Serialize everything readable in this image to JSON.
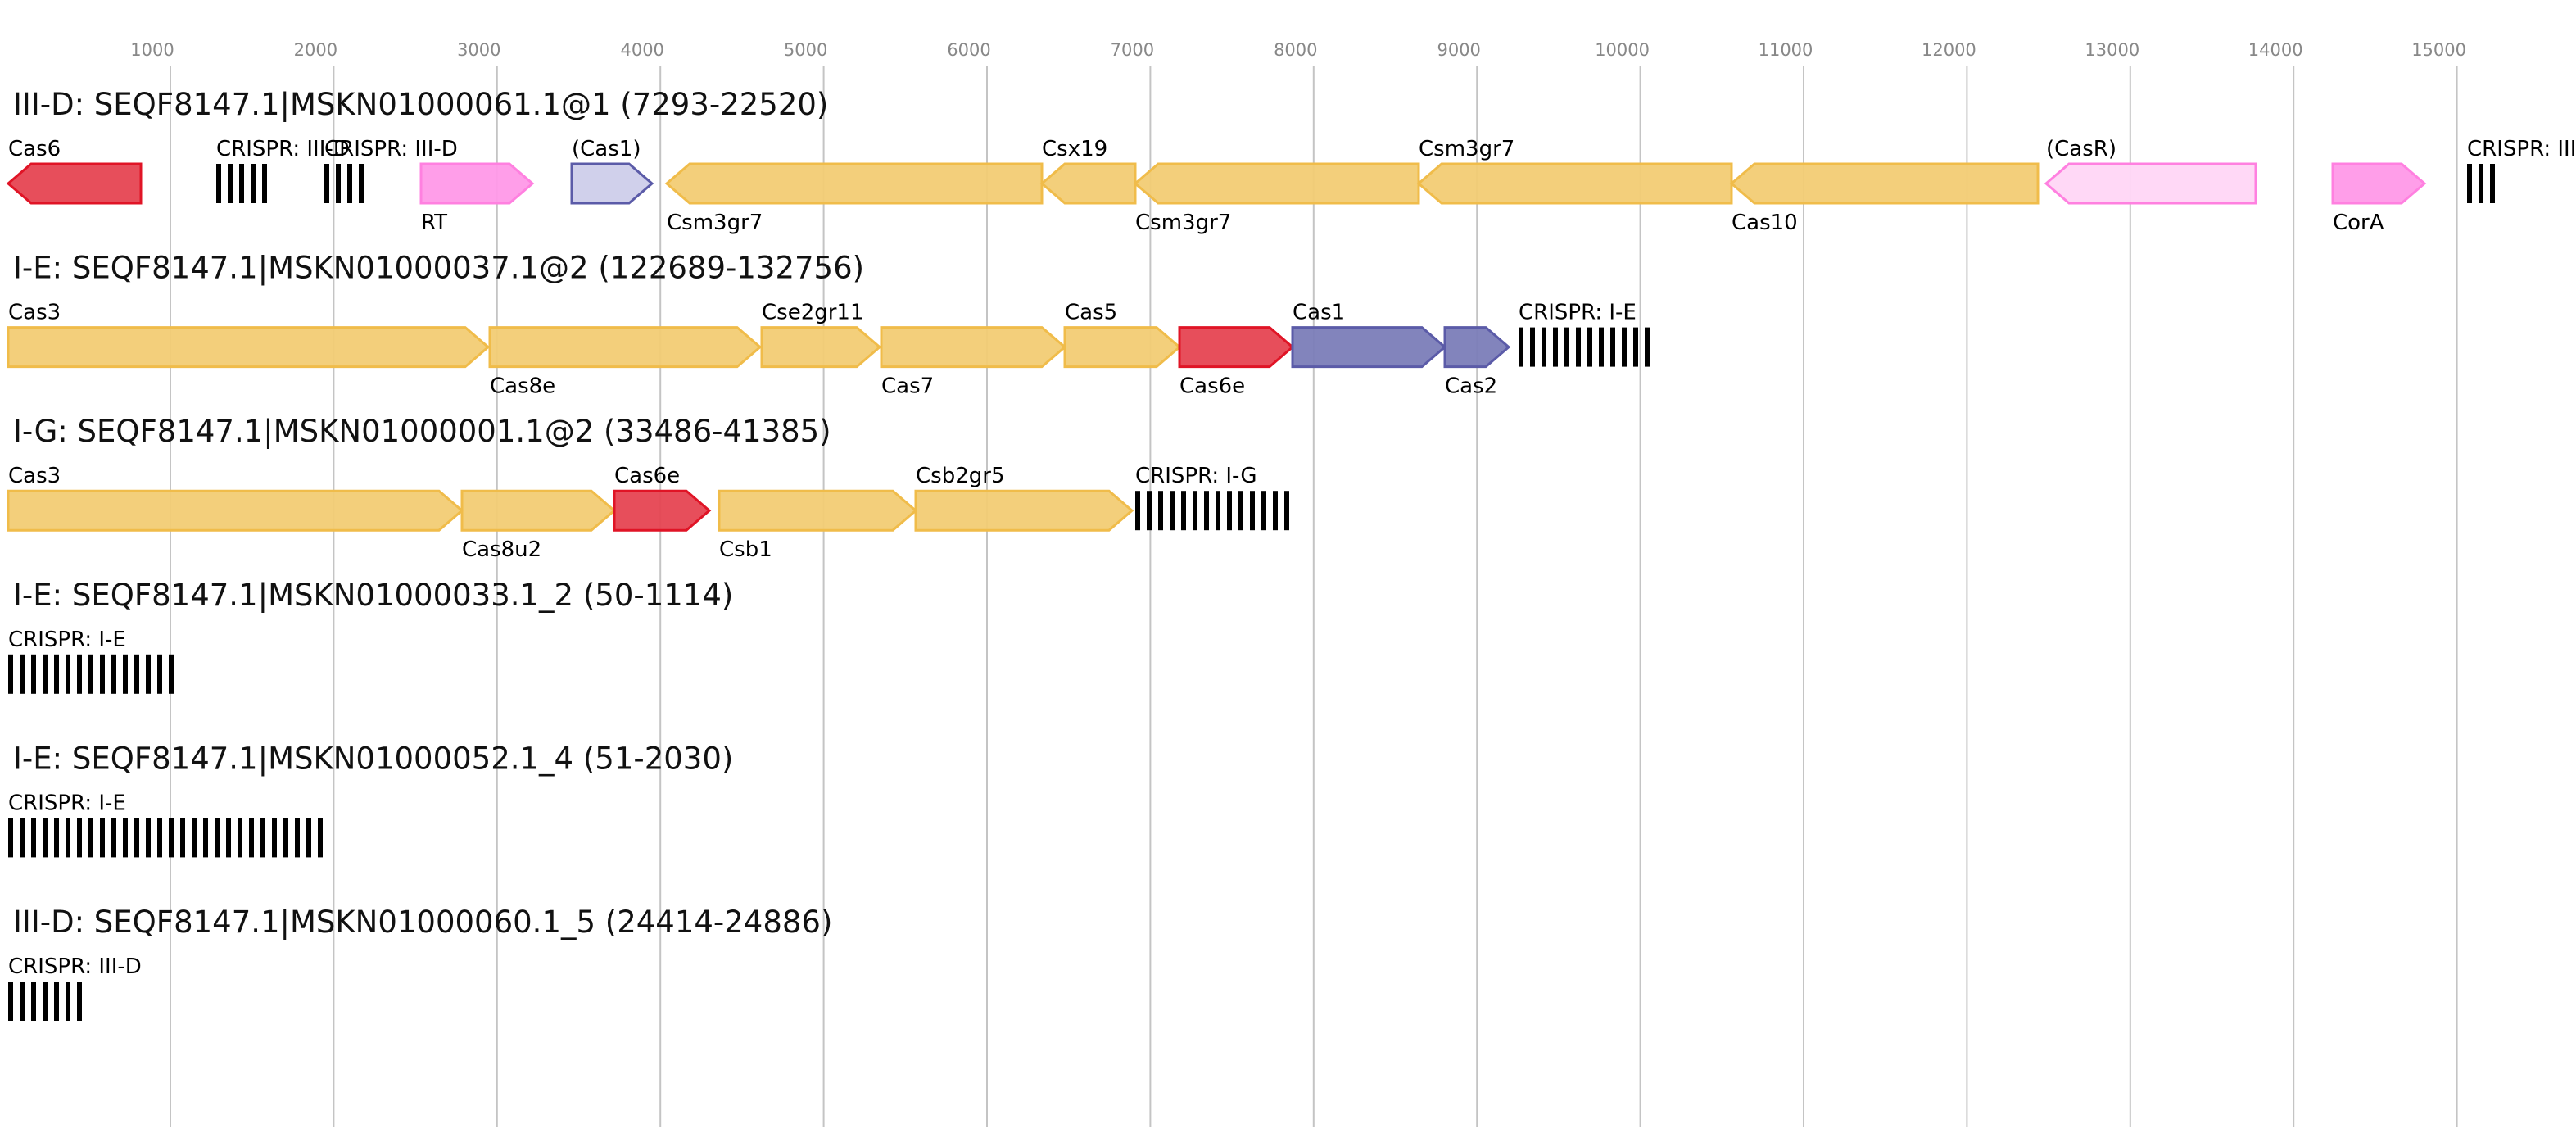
{
  "axis": {
    "ticks": [
      "1000",
      "2000",
      "3000",
      "4000",
      "5000",
      "6000",
      "7000",
      "8000",
      "9000",
      "10000",
      "11000",
      "12000",
      "13000",
      "14000",
      "15000"
    ]
  },
  "colors": {
    "yellow": {
      "fill": "#f2cc74",
      "stroke": "#f0bc4a"
    },
    "red": {
      "fill": "#e64452",
      "stroke": "#e01426"
    },
    "pink": {
      "fill": "#ff99e8",
      "stroke": "#ff80e0"
    },
    "lightpink": {
      "fill": "#ffd6f5",
      "stroke": "#ff80e0"
    },
    "lavender": {
      "fill": "#ceceea",
      "stroke": "#5b5ba8"
    },
    "blue": {
      "fill": "#7b7db8",
      "stroke": "#5b5ba8"
    }
  },
  "loci": [
    {
      "title": "III-D: SEQF8147.1|MSKN01000061.1@1 (7293-22520)",
      "features": [
        {
          "label": "Cas6",
          "kind": "gene",
          "strand": "-",
          "color": "red"
        },
        {
          "label": "CRISPR: III-D",
          "kind": "crispr"
        },
        {
          "label": "CRISPR: III-D",
          "kind": "crispr"
        },
        {
          "label": "RT",
          "kind": "gene",
          "strand": "+",
          "color": "pink"
        },
        {
          "label": "(Cas1)",
          "kind": "gene",
          "strand": "+",
          "color": "lavender"
        },
        {
          "label": "Csm3gr7",
          "kind": "gene",
          "strand": "-",
          "color": "yellow"
        },
        {
          "label": "Csx19",
          "kind": "gene",
          "strand": "-",
          "color": "yellow"
        },
        {
          "label": "Csm3gr7",
          "kind": "gene",
          "strand": "-",
          "color": "yellow"
        },
        {
          "label": "Csm3gr7",
          "kind": "gene",
          "strand": "-",
          "color": "yellow"
        },
        {
          "label": "Cas10",
          "kind": "gene",
          "strand": "-",
          "color": "yellow"
        },
        {
          "label": "(CasR)",
          "kind": "gene",
          "strand": "-",
          "color": "lightpink"
        },
        {
          "label": "CorA",
          "kind": "gene",
          "strand": "+",
          "color": "pink"
        },
        {
          "label": "CRISPR: III-D",
          "kind": "crispr"
        }
      ]
    },
    {
      "title": "I-E: SEQF8147.1|MSKN01000037.1@2 (122689-132756)",
      "features": [
        {
          "label": "Cas3",
          "kind": "gene",
          "strand": "+",
          "color": "yellow"
        },
        {
          "label": "Cas8e",
          "kind": "gene",
          "strand": "+",
          "color": "yellow"
        },
        {
          "label": "Cse2gr11",
          "kind": "gene",
          "strand": "+",
          "color": "yellow"
        },
        {
          "label": "Cas7",
          "kind": "gene",
          "strand": "+",
          "color": "yellow"
        },
        {
          "label": "Cas5",
          "kind": "gene",
          "strand": "+",
          "color": "yellow"
        },
        {
          "label": "Cas6e",
          "kind": "gene",
          "strand": "+",
          "color": "red"
        },
        {
          "label": "Cas1",
          "kind": "gene",
          "strand": "+",
          "color": "blue"
        },
        {
          "label": "Cas2",
          "kind": "gene",
          "strand": "+",
          "color": "blue"
        },
        {
          "label": "CRISPR: I-E",
          "kind": "crispr"
        }
      ]
    },
    {
      "title": "I-G: SEQF8147.1|MSKN01000001.1@2 (33486-41385)",
      "features": [
        {
          "label": "Cas3",
          "kind": "gene",
          "strand": "+",
          "color": "yellow"
        },
        {
          "label": "Cas8u2",
          "kind": "gene",
          "strand": "+",
          "color": "yellow"
        },
        {
          "label": "Cas6e",
          "kind": "gene",
          "strand": "+",
          "color": "red"
        },
        {
          "label": "Csb1",
          "kind": "gene",
          "strand": "+",
          "color": "yellow"
        },
        {
          "label": "Csb2gr5",
          "kind": "gene",
          "strand": "+",
          "color": "yellow"
        },
        {
          "label": "CRISPR: I-G",
          "kind": "crispr"
        }
      ]
    },
    {
      "title": "I-E: SEQF8147.1|MSKN01000033.1_2 (50-1114)",
      "features": [
        {
          "label": "CRISPR: I-E",
          "kind": "crispr"
        }
      ]
    },
    {
      "title": "I-E: SEQF8147.1|MSKN01000052.1_4 (51-2030)",
      "features": [
        {
          "label": "CRISPR: I-E",
          "kind": "crispr"
        }
      ]
    },
    {
      "title": "III-D: SEQF8147.1|MSKN01000060.1_5 (24414-24886)",
      "features": [
        {
          "label": "CRISPR: III-D",
          "kind": "crispr"
        }
      ]
    }
  ]
}
